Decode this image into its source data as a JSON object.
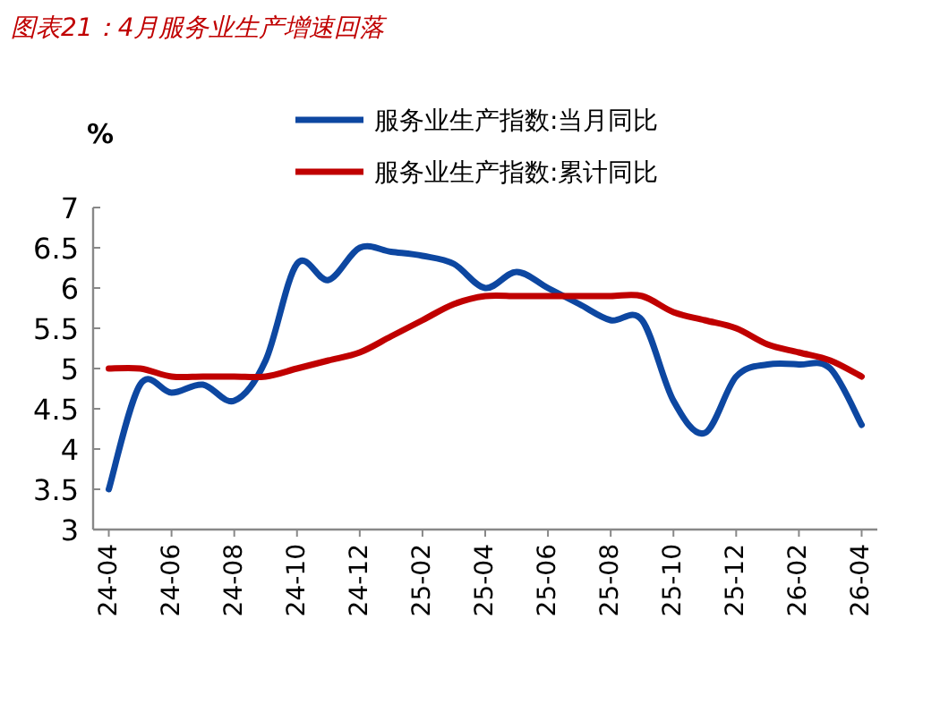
{
  "chart_data": {
    "type": "line",
    "title": "图表21：4月服务业生产增速回落",
    "ylabel": "%",
    "categories": [
      "24-04",
      null,
      "24-06",
      null,
      "24-08",
      null,
      "24-10",
      null,
      "24-12",
      null,
      "25-02",
      null,
      "25-04",
      null,
      "25-06",
      null,
      "25-08",
      null,
      "25-10",
      null,
      "25-12",
      null,
      "26-02",
      null,
      "26-04"
    ],
    "ylim": [
      3,
      7
    ],
    "yticks": [
      3,
      3.5,
      4,
      4.5,
      5,
      5.5,
      6,
      6.5,
      7
    ],
    "grid": false,
    "legend": "top",
    "marker": "none",
    "line_style": "solid",
    "series": [
      {
        "name": "服务业生产指数:当月同比",
        "color": "#0d47a1",
        "values": [
          3.5,
          4.8,
          4.7,
          4.8,
          4.6,
          5.1,
          6.3,
          6.1,
          6.5,
          6.45,
          6.4,
          6.3,
          6.0,
          6.2,
          6.0,
          5.8,
          5.6,
          5.6,
          4.6,
          4.2,
          4.9,
          5.05,
          5.05,
          5.0,
          4.3
        ]
      },
      {
        "name": "服务业生产指数:累计同比",
        "color": "#c00000",
        "values": [
          5.0,
          5.0,
          4.9,
          4.9,
          4.9,
          4.9,
          5.0,
          5.1,
          5.2,
          5.4,
          5.6,
          5.8,
          5.9,
          5.9,
          5.9,
          5.9,
          5.9,
          5.9,
          5.7,
          5.6,
          5.5,
          5.3,
          5.2,
          5.1,
          4.9
        ]
      }
    ]
  }
}
